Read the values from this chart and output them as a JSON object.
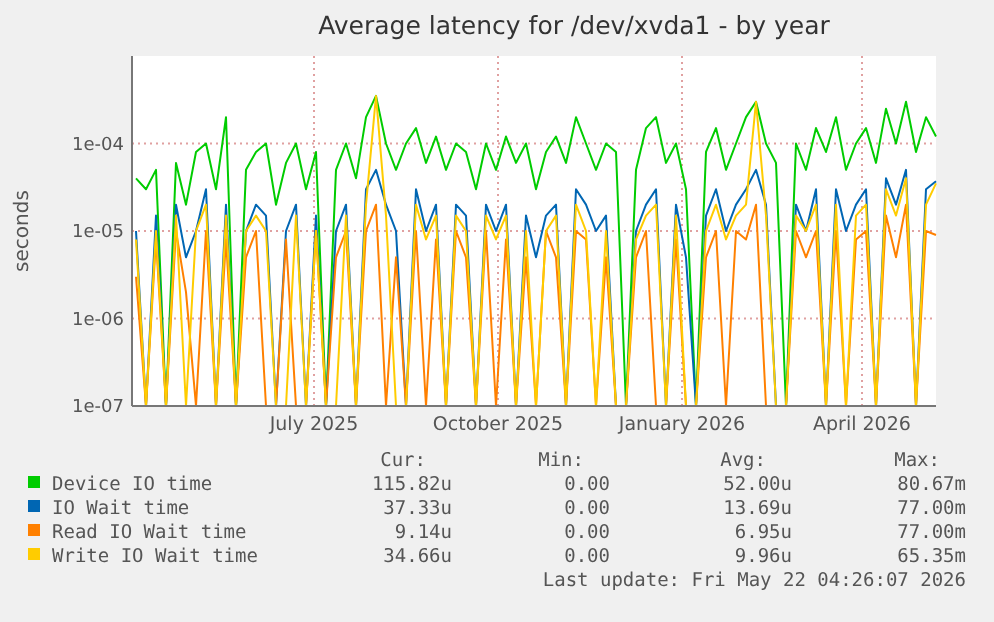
{
  "chart_data": {
    "type": "line",
    "title": "Average latency for /dev/xvda1 - by year",
    "ylabel": "seconds",
    "log": "y",
    "grid": true,
    "legend": "bottom",
    "line_style": "solid",
    "x": [
      "2025-04-17",
      "2025-04-22",
      "2025-04-27",
      "2025-05-02",
      "2025-05-07",
      "2025-05-12",
      "2025-05-17",
      "2025-05-22",
      "2025-05-27",
      "2025-06-01",
      "2025-06-06",
      "2025-06-11",
      "2025-06-16",
      "2025-06-21",
      "2025-06-26",
      "2025-07-01",
      "2025-07-06",
      "2025-07-11",
      "2025-07-16",
      "2025-07-21",
      "2025-07-26",
      "2025-07-31",
      "2025-08-05",
      "2025-08-10",
      "2025-08-15",
      "2025-08-20",
      "2025-08-25",
      "2025-08-30",
      "2025-09-04",
      "2025-09-09",
      "2025-09-14",
      "2025-09-19",
      "2025-09-24",
      "2025-09-29",
      "2025-10-04",
      "2025-10-09",
      "2025-10-14",
      "2025-10-19",
      "2025-10-24",
      "2025-10-29",
      "2025-11-03",
      "2025-11-08",
      "2025-11-13",
      "2025-11-18",
      "2025-11-23",
      "2025-11-28",
      "2025-12-03",
      "2025-12-08",
      "2025-12-13",
      "2025-12-18",
      "2025-12-23",
      "2025-12-28",
      "2026-01-02",
      "2026-01-07",
      "2026-01-12",
      "2026-01-17",
      "2026-01-22",
      "2026-01-27",
      "2026-02-01",
      "2026-02-06",
      "2026-02-11",
      "2026-02-16",
      "2026-02-21",
      "2026-02-26",
      "2026-03-03",
      "2026-03-08",
      "2026-03-13",
      "2026-03-18",
      "2026-03-23",
      "2026-03-28",
      "2026-04-02",
      "2026-04-07",
      "2026-04-12",
      "2026-04-17",
      "2026-04-22",
      "2026-04-27",
      "2026-05-02",
      "2026-05-07",
      "2026-05-12",
      "2026-05-17",
      "2026-05-22"
    ],
    "xlim": [
      "2025-04-15",
      "2026-05-22"
    ],
    "xticks": [
      {
        "value": "2025-07-15",
        "label": "July 2025"
      },
      {
        "value": "2025-10-15",
        "label": "October 2025"
      },
      {
        "value": "2026-01-15",
        "label": "January 2026"
      },
      {
        "value": "2026-04-15",
        "label": "April 2026"
      }
    ],
    "ylim": [
      1e-07,
      0.001
    ],
    "yticks": [
      {
        "value": 1e-07,
        "label": "1e-07"
      },
      {
        "value": 1e-06,
        "label": "1e-06"
      },
      {
        "value": 1e-05,
        "label": "1e-05"
      },
      {
        "value": 0.0001,
        "label": "1e-04"
      }
    ],
    "series": [
      {
        "name": "Device IO time",
        "color": "#00cc00",
        "values": [
          4e-05,
          3e-05,
          5e-05,
          1e-07,
          6e-05,
          2e-05,
          8e-05,
          0.0001,
          3e-05,
          0.0002,
          1e-07,
          5e-05,
          8e-05,
          0.0001,
          2e-05,
          6e-05,
          0.0001,
          3e-05,
          8e-05,
          1e-07,
          5e-05,
          0.0001,
          4e-05,
          0.0002,
          0.00035,
          0.0001,
          5e-05,
          0.0001,
          0.00015,
          6e-05,
          0.00012,
          5e-05,
          0.0001,
          8e-05,
          3e-05,
          0.0001,
          5e-05,
          0.00012,
          6e-05,
          0.0001,
          3e-05,
          8e-05,
          0.00012,
          6e-05,
          0.0002,
          0.0001,
          5e-05,
          0.0001,
          8e-05,
          1e-07,
          5e-05,
          0.00015,
          0.0002,
          6e-05,
          0.0001,
          3e-05,
          1e-07,
          8e-05,
          0.00015,
          5e-05,
          0.0001,
          0.0002,
          0.0003,
          0.0001,
          6e-05,
          1e-07,
          0.0001,
          5e-05,
          0.00015,
          8e-05,
          0.0002,
          5e-05,
          0.0001,
          0.00015,
          6e-05,
          0.00025,
          0.0001,
          0.0003,
          8e-05,
          0.0002,
          0.00012
        ]
      },
      {
        "name": "IO Wait time",
        "color": "#0066b3",
        "values": [
          1e-05,
          1e-07,
          1.5e-05,
          1e-07,
          2e-05,
          5e-06,
          1e-05,
          3e-05,
          1e-07,
          2e-05,
          1e-07,
          1e-05,
          2e-05,
          1.5e-05,
          1e-07,
          1e-05,
          2e-05,
          1e-07,
          1.5e-05,
          1e-07,
          1e-05,
          2e-05,
          1e-07,
          3e-05,
          5e-05,
          2e-05,
          1e-05,
          1e-07,
          3e-05,
          1e-05,
          2e-05,
          1e-07,
          2e-05,
          1.5e-05,
          1e-07,
          2e-05,
          1e-05,
          2e-05,
          1e-07,
          1.5e-05,
          5e-06,
          1.5e-05,
          2e-05,
          1e-07,
          3e-05,
          2e-05,
          1e-05,
          1.5e-05,
          1e-07,
          1e-07,
          1e-05,
          2e-05,
          3e-05,
          1e-07,
          2e-05,
          5e-06,
          1e-07,
          1.5e-05,
          3e-05,
          1e-05,
          2e-05,
          3e-05,
          5e-05,
          2e-05,
          1e-07,
          1e-07,
          2e-05,
          1e-05,
          3e-05,
          1e-07,
          3e-05,
          1e-05,
          2e-05,
          3e-05,
          1e-07,
          4e-05,
          2e-05,
          5e-05,
          1e-07,
          3e-05,
          3.7e-05
        ]
      },
      {
        "name": "Read IO Wait time",
        "color": "#ff8000",
        "values": [
          3e-06,
          1e-07,
          8e-06,
          1e-07,
          1e-05,
          2e-06,
          1e-07,
          1e-05,
          1e-07,
          8e-06,
          1e-07,
          5e-06,
          1e-05,
          1e-07,
          1e-07,
          8e-06,
          1e-07,
          1e-07,
          1e-05,
          1e-07,
          5e-06,
          1e-05,
          1e-07,
          1e-05,
          2e-05,
          1e-07,
          5e-06,
          1e-07,
          1e-05,
          1e-07,
          8e-06,
          1e-07,
          1e-05,
          5e-06,
          1e-07,
          1e-05,
          1e-07,
          8e-06,
          1e-07,
          5e-06,
          1e-07,
          1e-05,
          5e-06,
          1e-07,
          1e-05,
          8e-06,
          1e-07,
          5e-06,
          1e-07,
          1e-07,
          5e-06,
          1e-05,
          1e-07,
          1e-07,
          8e-06,
          1e-07,
          1e-07,
          5e-06,
          1e-05,
          1e-07,
          1e-05,
          8e-06,
          2e-05,
          1e-07,
          1e-07,
          1e-07,
          1e-05,
          5e-06,
          1e-05,
          1e-07,
          1e-05,
          1e-07,
          8e-06,
          1e-05,
          1e-07,
          1.5e-05,
          5e-06,
          2e-05,
          1e-07,
          1e-05,
          9e-06
        ]
      },
      {
        "name": "Write IO Wait time",
        "color": "#ffcc00",
        "values": [
          8e-06,
          1e-07,
          1e-05,
          1e-07,
          1.5e-05,
          1e-07,
          1e-05,
          2e-05,
          1e-07,
          1.5e-05,
          1e-07,
          1e-05,
          1.5e-05,
          1e-05,
          1e-07,
          1e-07,
          1.5e-05,
          1e-07,
          1e-05,
          1e-07,
          1e-07,
          1.5e-05,
          1e-07,
          2e-05,
          0.00035,
          1.5e-05,
          1e-07,
          1e-07,
          2e-05,
          8e-06,
          1.5e-05,
          1e-07,
          1.5e-05,
          1e-05,
          1e-07,
          1.5e-05,
          8e-06,
          1.5e-05,
          1e-07,
          1e-05,
          1e-07,
          1e-05,
          1.5e-05,
          1e-07,
          2e-05,
          1e-05,
          1e-07,
          1e-05,
          1e-07,
          1e-07,
          8e-06,
          1.5e-05,
          2e-05,
          1e-07,
          1.5e-05,
          1e-07,
          1e-07,
          1e-05,
          2e-05,
          8e-06,
          1.5e-05,
          2e-05,
          0.0003,
          1.5e-05,
          1e-07,
          1e-07,
          1.5e-05,
          1e-05,
          2e-05,
          1e-07,
          2e-05,
          1e-07,
          1.5e-05,
          2e-05,
          1e-07,
          3e-05,
          1.5e-05,
          4e-05,
          1e-07,
          2e-05,
          3.5e-05
        ]
      }
    ],
    "annotations": [
      "Cur:",
      "Min:",
      "Avg:",
      "Max:",
      "115.82u",
      "0.00",
      "52.00u",
      "80.67m",
      "37.33u",
      "0.00",
      "13.69u",
      "77.00m",
      "9.14u",
      "0.00",
      "6.95u",
      "77.00m",
      "34.66u",
      "0.00",
      "9.96u",
      "65.35m",
      "Last update: Fri May 22 04:26:07 2026"
    ]
  }
}
